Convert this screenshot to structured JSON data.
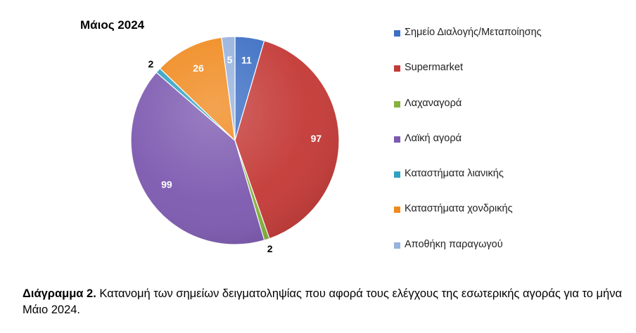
{
  "chart_data": {
    "type": "pie",
    "title": "Μάιος 2024",
    "categories": [
      "Σημείο Διαλογής/Μεταποίησης",
      "Supermarket",
      "Λαχαναγορά",
      "Λαϊκή αγορά",
      "Καταστήματα λιανικής",
      "Καταστήματα χονδρικής",
      "Αποθήκη παραγωγού"
    ],
    "values": [
      11,
      97,
      2,
      99,
      2,
      26,
      5
    ],
    "colors": [
      "#3d6fc4",
      "#c43a37",
      "#85b23e",
      "#7d5ab0",
      "#2fa3c2",
      "#f08a1f",
      "#97b2de"
    ],
    "legend_position": "right",
    "data_labels": true
  },
  "caption": {
    "prefix": "Διάγραμμα 2.",
    "text": " Κατανομή των σημείων δειγματοληψίας που αφορά τους ελέγχους της εσωτερικής αγοράς για το μήνα Μάιο 2024."
  }
}
